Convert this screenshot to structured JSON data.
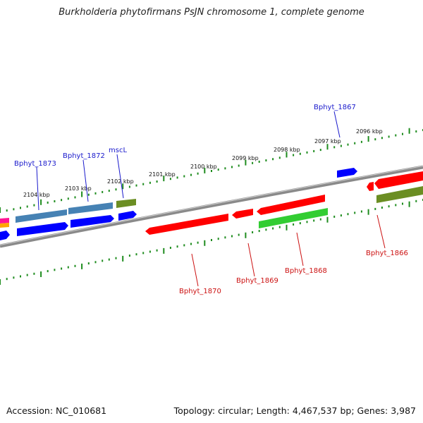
{
  "title": "Burkholderia phytofirmans PsJN chromosome 1, complete genome",
  "footer": {
    "accession": "Accession: NC_010681",
    "summary": "Topology: circular; Length: 4,467,537 bp; Genes: 3,987"
  },
  "colors": {
    "upper_label": "#1a1acc",
    "lower_label": "#cc1111",
    "backbone": "#8a8a8a",
    "ticks": "#1e8c1e"
  },
  "ticks": [
    {
      "label": "2104 kbp"
    },
    {
      "label": "2103 kbp"
    },
    {
      "label": "2102 kbp"
    },
    {
      "label": "2101 kbp"
    },
    {
      "label": "2100 kbp"
    },
    {
      "label": "2099 kbp"
    },
    {
      "label": "2098 kbp"
    },
    {
      "label": "2097 kbp"
    },
    {
      "label": "2096 kbp"
    }
  ],
  "gene_labels": [
    {
      "text": "Bphyt_1873",
      "strand": "plus"
    },
    {
      "text": "Bphyt_1872",
      "strand": "plus"
    },
    {
      "text": "mscL",
      "strand": "plus"
    },
    {
      "text": "Bphyt_1867",
      "strand": "plus"
    },
    {
      "text": "Bphyt_1870",
      "strand": "minus"
    },
    {
      "text": "Bphyt_1869",
      "strand": "minus"
    },
    {
      "text": "Bphyt_1868",
      "strand": "minus"
    },
    {
      "text": "Bphyt_1866",
      "strand": "minus"
    }
  ],
  "features": [
    {
      "id": "f-steel-1873",
      "color": "#4682b4"
    },
    {
      "id": "f-steel-1872",
      "color": "#4682b4"
    },
    {
      "id": "f-olive-mscL",
      "color": "#6b8e23"
    },
    {
      "id": "f-blue-1873",
      "color": "#0000ff"
    },
    {
      "id": "f-blue-1872",
      "color": "#0000ff"
    },
    {
      "id": "f-blue-mscL",
      "color": "#0000ff"
    },
    {
      "id": "f-blue-1867",
      "color": "#0000ff"
    },
    {
      "id": "f-red-1870",
      "color": "#ff0000"
    },
    {
      "id": "f-red-1869",
      "color": "#ff0000"
    },
    {
      "id": "f-red-1868",
      "color": "#ff0000"
    },
    {
      "id": "f-green-1868",
      "color": "#32cd32"
    },
    {
      "id": "f-red-1866a",
      "color": "#ff0000"
    },
    {
      "id": "f-red-1866b",
      "color": "#ff0000"
    },
    {
      "id": "f-olive-1866",
      "color": "#6b8e23"
    },
    {
      "id": "f-edge-magenta",
      "color": "#ff1493"
    },
    {
      "id": "f-edge-orange",
      "color": "#ffa500"
    },
    {
      "id": "f-edge-blue",
      "color": "#0000ff"
    }
  ]
}
